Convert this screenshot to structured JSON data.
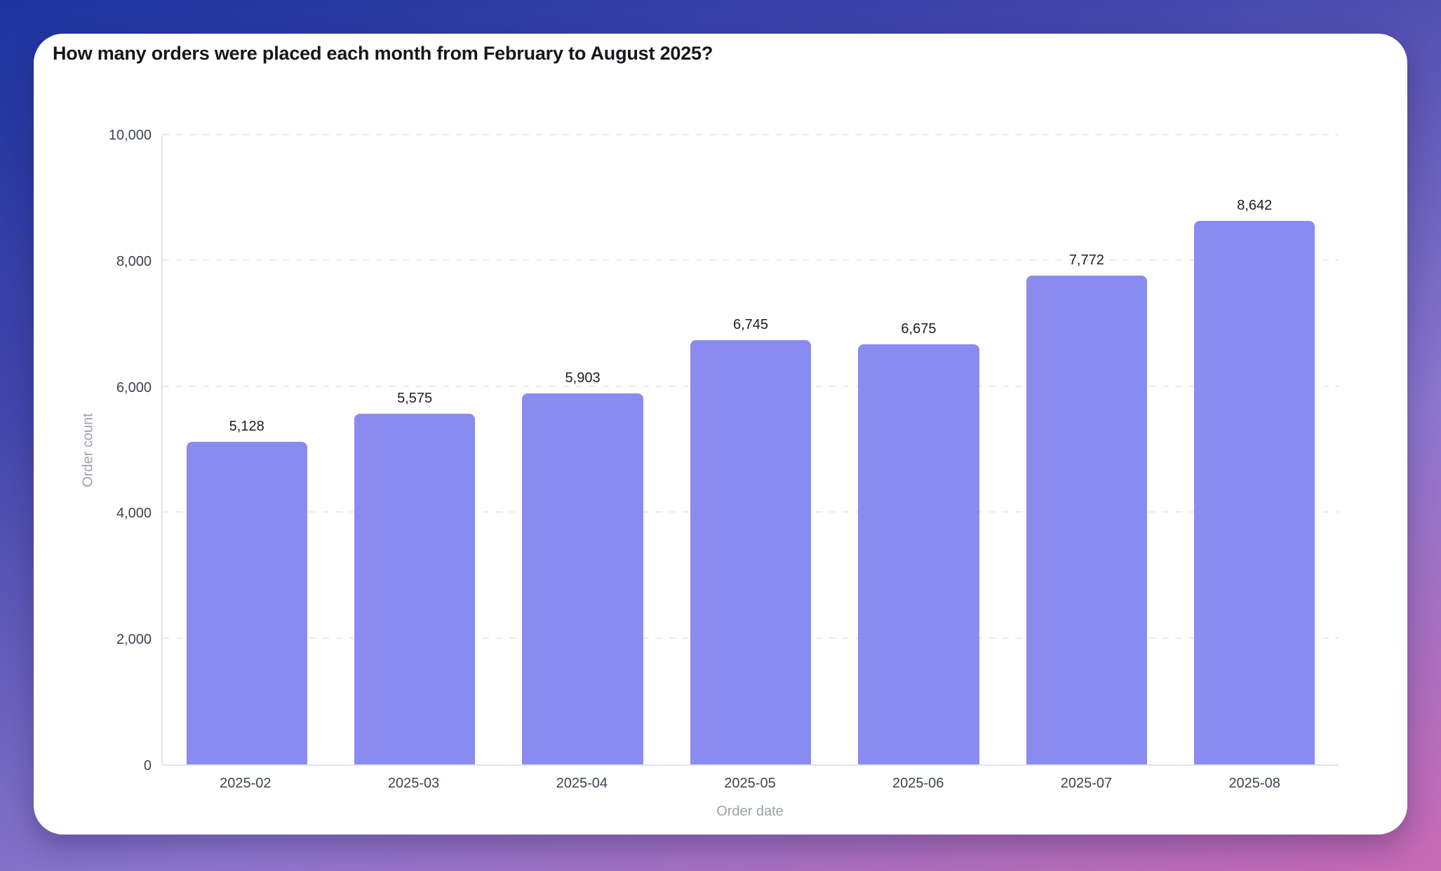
{
  "page": {
    "background_gradient": [
      "#1c339f",
      "#4648ab",
      "#8a76cd",
      "#c86ab3"
    ]
  },
  "chart_data": {
    "type": "bar",
    "title": "How many orders were placed each month from February to August 2025?",
    "categories": [
      "2025-02",
      "2025-03",
      "2025-04",
      "2025-05",
      "2025-06",
      "2025-07",
      "2025-08"
    ],
    "values": [
      5128,
      5575,
      5903,
      6745,
      6675,
      7772,
      8642
    ],
    "value_labels": [
      "5,128",
      "5,575",
      "5,903",
      "6,745",
      "6,675",
      "7,772",
      "8,642"
    ],
    "xlabel": "Order date",
    "ylabel": "Order count",
    "ylim": [
      0,
      10000
    ],
    "yticks": [
      0,
      2000,
      4000,
      6000,
      8000,
      10000
    ],
    "ytick_labels": [
      "0",
      "2,000",
      "4,000",
      "6,000",
      "8,000",
      "10,000"
    ],
    "grid": "horizontal-dashed",
    "legend": "none",
    "bar_color": "#8a8bef"
  }
}
